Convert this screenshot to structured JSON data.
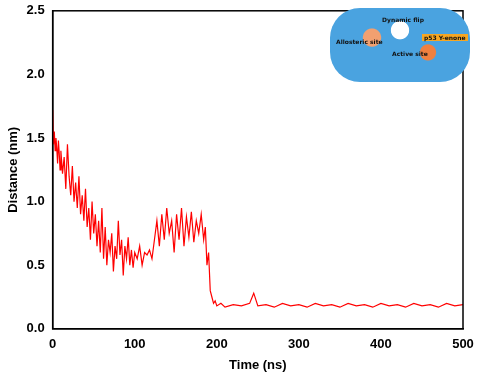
{
  "chart_data": {
    "type": "line",
    "x_label": "Time (ns)",
    "y_label": "Distance (nm)",
    "annotations": [
      "Dynamic flip",
      "Allosteric site",
      "Active site",
      "p53 Y-enone"
    ],
    "x": [
      0,
      1,
      2,
      3,
      4,
      5,
      6,
      7,
      8,
      9,
      10,
      12,
      14,
      16,
      18,
      20,
      22,
      24,
      26,
      28,
      30,
      32,
      34,
      36,
      38,
      40,
      42,
      44,
      46,
      48,
      50,
      52,
      54,
      56,
      58,
      60,
      62,
      64,
      66,
      68,
      70,
      72,
      74,
      76,
      78,
      80,
      82,
      84,
      86,
      88,
      90,
      92,
      94,
      96,
      98,
      100,
      103,
      106,
      109,
      112,
      115,
      118,
      121,
      124,
      127,
      130,
      133,
      136,
      139,
      142,
      145,
      148,
      151,
      154,
      157,
      160,
      163,
      166,
      169,
      172,
      175,
      178,
      181,
      184,
      186,
      188,
      190,
      192,
      194,
      196,
      198,
      200,
      205,
      210,
      220,
      230,
      240,
      245,
      250,
      260,
      270,
      280,
      290,
      300,
      310,
      320,
      330,
      340,
      350,
      360,
      370,
      380,
      390,
      400,
      410,
      420,
      430,
      440,
      450,
      460,
      470,
      480,
      490,
      500
    ],
    "series": [
      {
        "name": "Distance",
        "color": "#ff0000",
        "values": [
          1.72,
          1.45,
          1.55,
          1.4,
          1.5,
          1.42,
          1.3,
          1.48,
          1.38,
          1.25,
          1.4,
          1.22,
          1.35,
          1.1,
          1.45,
          1.2,
          1.05,
          1.28,
          1.0,
          1.15,
          0.95,
          1.2,
          0.9,
          1.05,
          0.85,
          1.1,
          0.8,
          0.95,
          0.7,
          1.0,
          0.75,
          0.9,
          0.65,
          0.85,
          0.6,
          0.95,
          0.55,
          0.8,
          0.5,
          0.7,
          0.6,
          0.75,
          0.45,
          0.65,
          0.55,
          0.85,
          0.58,
          0.7,
          0.42,
          0.65,
          0.55,
          0.72,
          0.5,
          0.62,
          0.48,
          0.6,
          0.55,
          0.65,
          0.5,
          0.6,
          0.58,
          0.62,
          0.55,
          0.7,
          0.85,
          0.65,
          0.9,
          0.7,
          0.95,
          0.75,
          0.85,
          0.6,
          0.9,
          0.7,
          0.95,
          0.65,
          0.88,
          0.72,
          0.92,
          0.68,
          0.85,
          0.75,
          0.9,
          0.7,
          0.8,
          0.5,
          0.6,
          0.3,
          0.25,
          0.2,
          0.22,
          0.18,
          0.2,
          0.17,
          0.19,
          0.18,
          0.2,
          0.28,
          0.18,
          0.19,
          0.17,
          0.2,
          0.18,
          0.19,
          0.17,
          0.2,
          0.18,
          0.19,
          0.17,
          0.2,
          0.18,
          0.19,
          0.17,
          0.2,
          0.18,
          0.19,
          0.17,
          0.2,
          0.18,
          0.19,
          0.17,
          0.2,
          0.18,
          0.19
        ]
      }
    ],
    "xlim": [
      0,
      500
    ],
    "xticks": [
      0,
      100,
      200,
      300,
      400,
      500
    ],
    "ylim": [
      0,
      2.5
    ],
    "yticks": [
      {
        "value": 0,
        "label": "0.0"
      },
      {
        "value": 0.5,
        "label": "0.5"
      },
      {
        "value": 1,
        "label": "1.0"
      },
      {
        "value": 1.5,
        "label": "1.5"
      },
      {
        "value": 2,
        "label": "2.0"
      },
      {
        "value": 2.5,
        "label": "2.5"
      }
    ],
    "grid": false
  }
}
